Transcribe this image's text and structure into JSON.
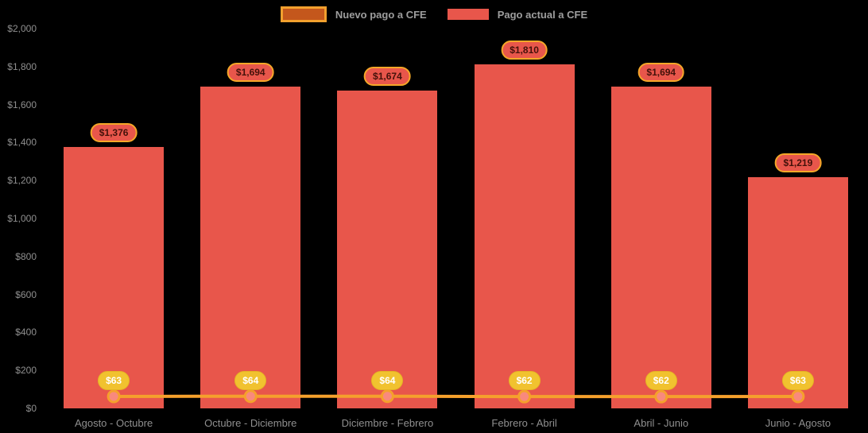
{
  "legend": {
    "items": [
      {
        "label": "Nuevo pago a CFE"
      },
      {
        "label": "Pago actual a CFE"
      }
    ]
  },
  "chart_data": {
    "type": "bar",
    "categories": [
      "Agosto - Octubre",
      "Octubre - Diciembre",
      "Diciembre - Febrero",
      "Febrero - Abril",
      "Abril - Junio",
      "Junio - Agosto"
    ],
    "series": [
      {
        "name": "Pago actual a CFE",
        "type": "bar",
        "values": [
          1376,
          1694,
          1674,
          1810,
          1694,
          1219
        ],
        "data_labels": [
          "$1,376",
          "$1,694",
          "$1,674",
          "$1,810",
          "$1,694",
          "$1,219"
        ]
      },
      {
        "name": "Nuevo pago a CFE",
        "type": "line",
        "values": [
          63,
          64,
          64,
          62,
          62,
          63
        ],
        "data_labels": [
          "$63",
          "$64",
          "$64",
          "$62",
          "$62",
          "$63"
        ]
      }
    ],
    "title": "",
    "xlabel": "",
    "ylabel": "",
    "ylim": [
      0,
      2000
    ],
    "ytick_labels": [
      "$0",
      "$200",
      "$400",
      "$600",
      "$800",
      "$1,000",
      "$1,200",
      "$1,400",
      "$1,600",
      "$1,800",
      "$2,000"
    ],
    "legend_position": "top",
    "grid": false
  },
  "colors": {
    "background": "#000000",
    "bar": "#e8564b",
    "line": "#f5a02c",
    "bar_badge_bg": "#e8564b",
    "bar_badge_border": "#f5a728",
    "bar_badge_text": "#43110a",
    "line_badge_bg": "#f1c22f",
    "line_badge_border": "#e5b524",
    "line_badge_text": "#ffffff",
    "point_fill": "#f9897d",
    "point_stroke": "#f5a02c",
    "axis_text": "#8f8f8f",
    "legend_text": "#9e9e9e",
    "legend_nuevo_fill": "#c4571c",
    "legend_nuevo_border": "#f2a02e"
  }
}
